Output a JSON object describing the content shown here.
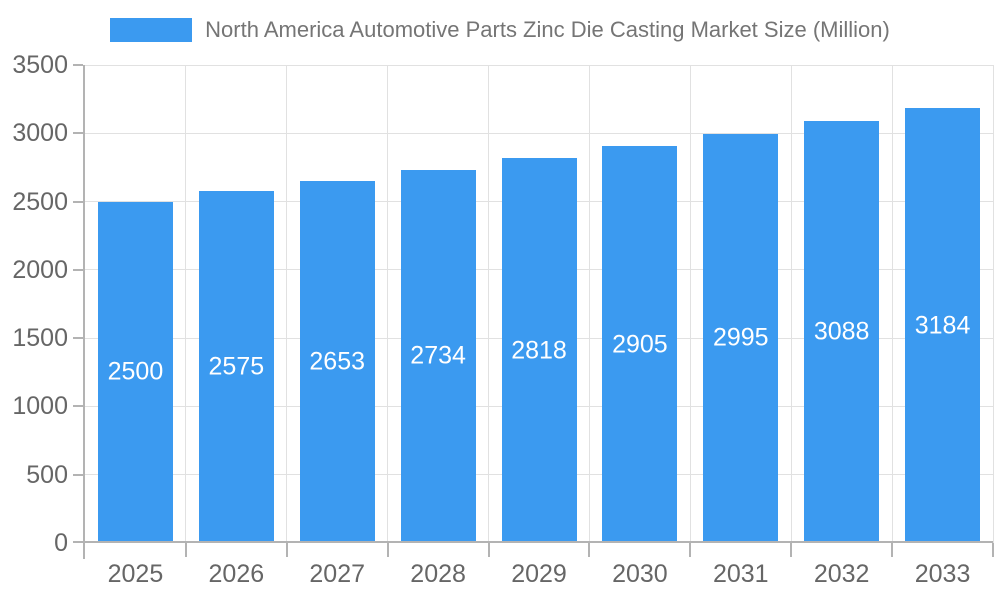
{
  "chart_data": {
    "type": "bar",
    "title": "North America Automotive Parts Zinc Die Casting Market Size (Million)",
    "categories": [
      "2025",
      "2026",
      "2027",
      "2028",
      "2029",
      "2030",
      "2031",
      "2032",
      "2033"
    ],
    "values": [
      2500,
      2575,
      2653,
      2734,
      2818,
      2905,
      2995,
      3088,
      3184
    ],
    "xlabel": "",
    "ylabel": "",
    "ylim": [
      0,
      3500
    ],
    "yticks": [
      0,
      500,
      1000,
      1500,
      2000,
      2500,
      3000,
      3500
    ],
    "grid": true,
    "legend_position": "top",
    "value_labels": "inside-center"
  },
  "legend": {
    "label": "North America Automotive Parts Zinc Die Casting Market Size (Million)"
  },
  "colors": {
    "bar": "#3B9AF0",
    "bar_label": "#FFFFFF",
    "gridline": "#E1E1E1",
    "axis": "#B3B3B3",
    "tick_label": "#666666",
    "legend_text": "#757575",
    "background": "#FFFFFF"
  }
}
